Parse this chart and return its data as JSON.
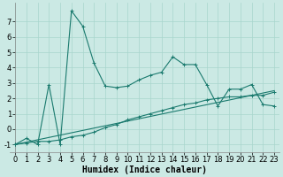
{
  "xlabel": "Humidex (Indice chaleur)",
  "background_color": "#cbe9e4",
  "grid_color": "#a8d5cc",
  "line_color": "#1a7a6e",
  "xlim": [
    -0.5,
    23.5
  ],
  "ylim": [
    -1.5,
    8.2
  ],
  "yticks": [
    -1,
    0,
    1,
    2,
    3,
    4,
    5,
    6,
    7
  ],
  "xticks": [
    0,
    1,
    2,
    3,
    4,
    5,
    6,
    7,
    8,
    9,
    10,
    11,
    12,
    13,
    14,
    15,
    16,
    17,
    18,
    19,
    20,
    21,
    22,
    23
  ],
  "series1_x": [
    0,
    1,
    2,
    3,
    4,
    5,
    6,
    7,
    8,
    9,
    10,
    11,
    12,
    13,
    14,
    15,
    16,
    17,
    18,
    19,
    20,
    21,
    22,
    23
  ],
  "series1_y": [
    -1.0,
    -0.6,
    -1.0,
    2.9,
    -1.0,
    7.7,
    6.7,
    4.3,
    2.8,
    2.7,
    2.8,
    3.2,
    3.5,
    3.7,
    4.7,
    4.2,
    4.2,
    2.9,
    1.5,
    2.6,
    2.6,
    2.9,
    1.6,
    1.5
  ],
  "series2_x": [
    0,
    1,
    2,
    3,
    4,
    5,
    6,
    7,
    8,
    9,
    10,
    11,
    12,
    13,
    14,
    15,
    16,
    17,
    18,
    19,
    20,
    21,
    22,
    23
  ],
  "series2_y": [
    -1.0,
    -0.9,
    -0.8,
    -0.8,
    -0.7,
    -0.5,
    -0.4,
    -0.2,
    0.1,
    0.3,
    0.6,
    0.8,
    1.0,
    1.2,
    1.4,
    1.6,
    1.7,
    1.9,
    2.0,
    2.1,
    2.1,
    2.2,
    2.2,
    2.4
  ],
  "series3_x": [
    0,
    23
  ],
  "series3_y": [
    -1.0,
    2.5
  ],
  "xlabel_fontsize": 7,
  "tick_fontsize": 6
}
